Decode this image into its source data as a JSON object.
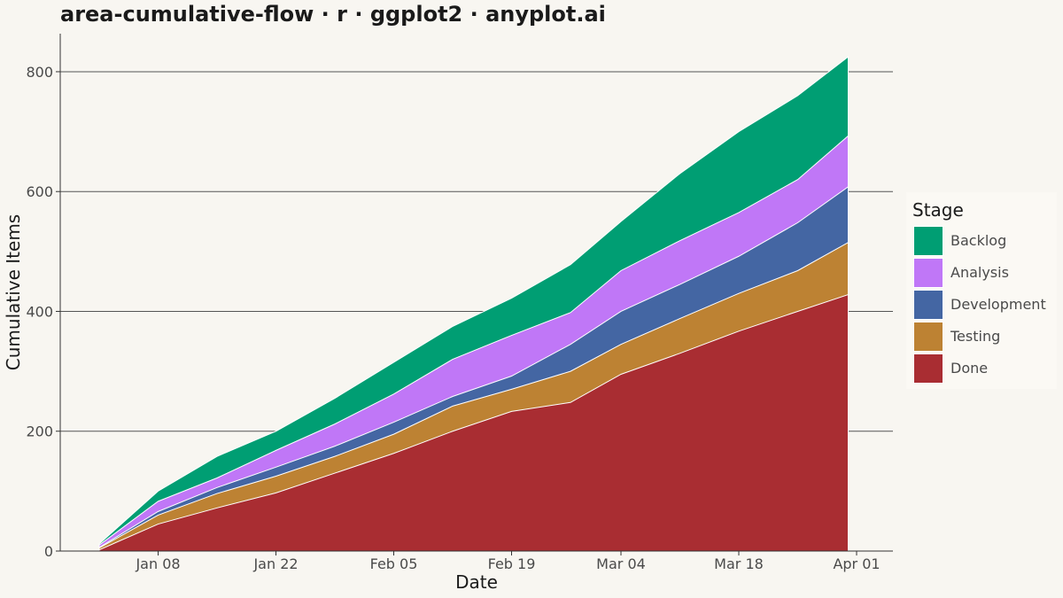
{
  "title": "area-cumulative-flow · r · ggplot2 · anyplot.ai",
  "legend": {
    "title": "Stage",
    "items": [
      {
        "label": "Backlog",
        "color": "#009e73"
      },
      {
        "label": "Analysis",
        "color": "#c077f7"
      },
      {
        "label": "Development",
        "color": "#4466a3"
      },
      {
        "label": "Testing",
        "color": "#bd8233"
      },
      {
        "label": "Done",
        "color": "#a92d32"
      }
    ]
  },
  "chart_data": {
    "type": "area",
    "stacked": true,
    "title": "area-cumulative-flow · r · ggplot2 · anyplot.ai",
    "xlabel": "Date",
    "ylabel": "Cumulative Items",
    "x_ticks": [
      "Jan 08",
      "Jan 22",
      "Feb 05",
      "Feb 19",
      "Mar 04",
      "Mar 18",
      "Apr 01"
    ],
    "y_ticks": [
      0,
      200,
      400,
      600,
      800
    ],
    "ylim": [
      0,
      860
    ],
    "grid": "horizontal major",
    "legend_position": "right",
    "x": [
      "Jan 01",
      "Jan 08",
      "Jan 15",
      "Jan 22",
      "Jan 29",
      "Feb 05",
      "Feb 12",
      "Feb 19",
      "Feb 26",
      "Mar 04",
      "Mar 11",
      "Mar 18",
      "Mar 25",
      "Mar 31"
    ],
    "series": [
      {
        "name": "Done",
        "color": "#a92d32",
        "values": [
          2,
          45,
          72,
          97,
          130,
          163,
          200,
          233,
          248,
          295,
          330,
          367,
          400,
          428
        ]
      },
      {
        "name": "Testing",
        "color": "#bd8233",
        "values": [
          5,
          60,
          96,
          125,
          158,
          195,
          242,
          270,
          300,
          345,
          388,
          430,
          468,
          515
        ]
      },
      {
        "name": "Development",
        "color": "#4466a3",
        "values": [
          6,
          66,
          106,
          140,
          175,
          215,
          258,
          292,
          345,
          400,
          445,
          492,
          548,
          608
        ]
      },
      {
        "name": "Analysis",
        "color": "#c077f7",
        "values": [
          10,
          83,
          122,
          168,
          212,
          262,
          320,
          360,
          398,
          468,
          518,
          565,
          620,
          693
        ]
      },
      {
        "name": "Backlog",
        "color": "#009e73",
        "values": [
          12,
          100,
          158,
          200,
          255,
          315,
          375,
          422,
          478,
          550,
          630,
          700,
          760,
          825
        ]
      }
    ]
  }
}
